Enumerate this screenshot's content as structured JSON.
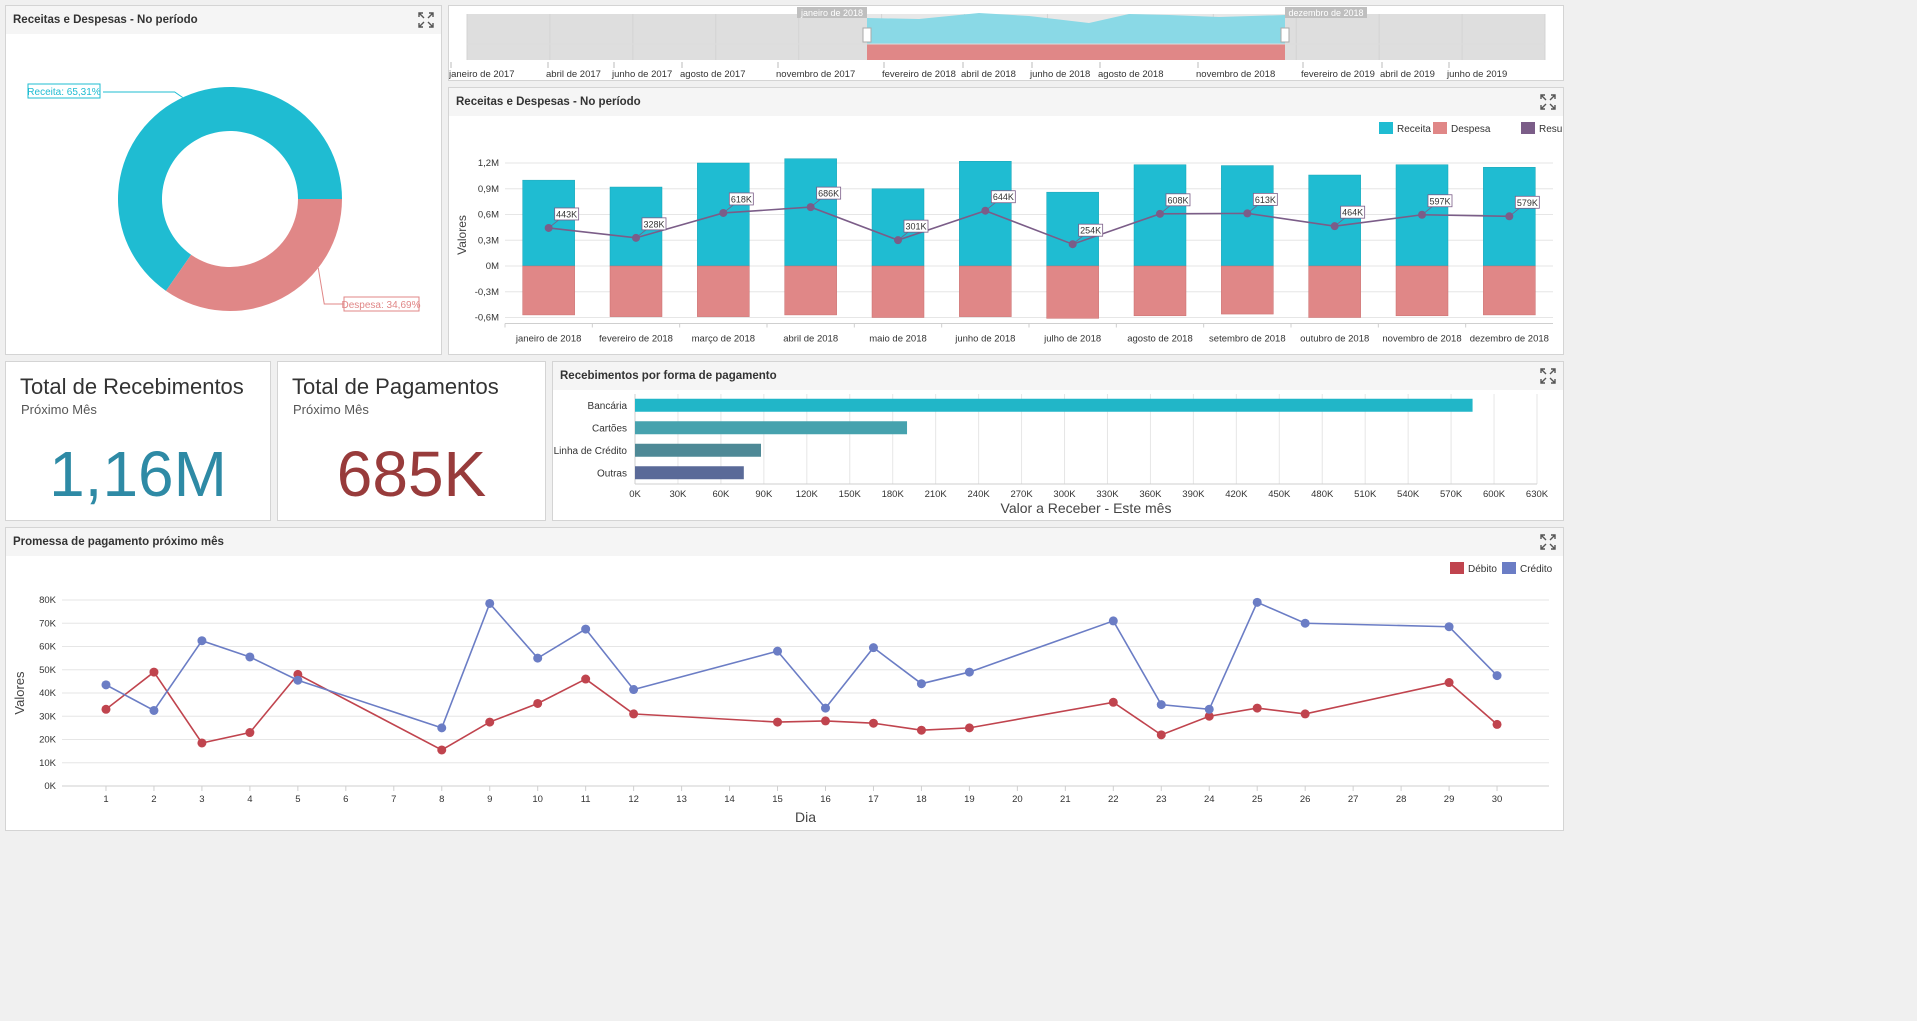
{
  "colors": {
    "receita": "#1fbcd2",
    "despesa": "#e08787",
    "resultado": "#7b5d88",
    "debito": "#c0444e",
    "credito": "#6b7dc5",
    "kpi_recebimentos": "#2e8aa5",
    "kpi_pagamentos": "#983b3b",
    "bar_bancaria": "#21b6c8",
    "bar_cartoes": "#46a2ae",
    "bar_linha": "#4e8996",
    "bar_outras": "#5a6a98"
  },
  "icons": {
    "maximize": "maximize-icon"
  },
  "donut": {
    "title": "Receitas e Despesas - No período",
    "chart_data": {
      "type": "pie",
      "slices": [
        {
          "name": "Receita",
          "value": 65.31,
          "label": "Receita: 65,31%"
        },
        {
          "name": "Despesa",
          "value": 34.69,
          "label": "Despesa: 34,69%"
        }
      ]
    }
  },
  "range": {
    "sel_start_label": "janeiro de 2018",
    "sel_end_label": "dezembro de 2018",
    "ticks": [
      "janeiro de 2017",
      "abril de 2017",
      "junho de 2017",
      "agosto de 2017",
      "novembro de 2017",
      "fevereiro de 2018",
      "abril de 2018",
      "junho de 2018",
      "agosto de 2018",
      "novembro de 2018",
      "fevereiro de 2019",
      "abril de 2019",
      "junho de 2019"
    ]
  },
  "monthly": {
    "title": "Receitas e Despesas - No período",
    "legend": [
      "Receita",
      "Despesa",
      "Resultado"
    ],
    "chart_data": {
      "type": "bar",
      "categories": [
        "janeiro de 2018",
        "fevereiro de 2018",
        "março de 2018",
        "abril de 2018",
        "maio de 2018",
        "junho de 2018",
        "julho de 2018",
        "agosto de 2018",
        "setembro de 2018",
        "outubro de 2018",
        "novembro de 2018",
        "dezembro de 2018"
      ],
      "series": [
        {
          "name": "Receita",
          "type": "bar",
          "values": [
            1.0,
            0.92,
            1.2,
            1.25,
            0.9,
            1.22,
            0.86,
            1.18,
            1.17,
            1.06,
            1.18,
            1.15
          ]
        },
        {
          "name": "Despesa",
          "type": "bar",
          "values": [
            -0.57,
            -0.59,
            -0.59,
            -0.57,
            -0.6,
            -0.59,
            -0.61,
            -0.58,
            -0.56,
            -0.6,
            -0.58,
            -0.57
          ]
        },
        {
          "name": "Resultado",
          "type": "line",
          "values": [
            0.443,
            0.328,
            0.618,
            0.686,
            0.301,
            0.644,
            0.254,
            0.608,
            0.613,
            0.464,
            0.597,
            0.579
          ],
          "labels": [
            "443K",
            "328K",
            "618K",
            "686K",
            "301K",
            "644K",
            "254K",
            "608K",
            "613K",
            "464K",
            "597K",
            "579K"
          ]
        }
      ],
      "ylabel": "Valores",
      "yticks": [
        "1,2M",
        "0,9M",
        "0,6M",
        "0,3M",
        "0M",
        "-0,3M",
        "-0,6M"
      ],
      "ytick_values": [
        1.2,
        0.9,
        0.6,
        0.3,
        0,
        -0.3,
        -0.6
      ],
      "ylim": [
        -0.6,
        1.2
      ]
    }
  },
  "kpi": {
    "recebimentos": {
      "title": "Total de Recebimentos",
      "subtitle": "Próximo Mês",
      "value": "1,16M"
    },
    "pagamentos": {
      "title": "Total de Pagamentos",
      "subtitle": "Próximo Mês",
      "value": "685K"
    }
  },
  "payments": {
    "title": "Recebimentos por forma de pagamento",
    "chart_data": {
      "type": "bar",
      "orientation": "horizontal",
      "categories": [
        "Bancária",
        "Cartões",
        "Linha de Crédito",
        "Outras"
      ],
      "values": [
        585000,
        190000,
        88000,
        76000
      ],
      "xlabel": "Valor a Receber - Este mês",
      "xticks": [
        "0K",
        "30K",
        "60K",
        "90K",
        "120K",
        "150K",
        "180K",
        "210K",
        "240K",
        "270K",
        "300K",
        "330K",
        "360K",
        "390K",
        "420K",
        "450K",
        "480K",
        "510K",
        "540K",
        "570K",
        "600K",
        "630K"
      ],
      "xlim": [
        0,
        630000
      ]
    }
  },
  "promise": {
    "title": "Promessa de pagamento próximo mês",
    "legend": [
      "Débito",
      "Crédito"
    ],
    "chart_data": {
      "type": "line",
      "xlabel": "Dia",
      "ylabel": "Valores",
      "xticks": [
        "1",
        "2",
        "3",
        "4",
        "5",
        "6",
        "7",
        "8",
        "9",
        "10",
        "11",
        "12",
        "13",
        "14",
        "15",
        "16",
        "17",
        "18",
        "19",
        "20",
        "21",
        "22",
        "23",
        "24",
        "25",
        "26",
        "27",
        "28",
        "29",
        "30"
      ],
      "yticks": [
        "80K",
        "70K",
        "60K",
        "50K",
        "40K",
        "30K",
        "20K",
        "10K",
        "0K"
      ],
      "ytick_values": [
        80,
        70,
        60,
        50,
        40,
        30,
        20,
        10,
        0
      ],
      "ylim": [
        0,
        80
      ],
      "series": [
        {
          "name": "Débito",
          "x": [
            1,
            2,
            3,
            4,
            5,
            8,
            9,
            10,
            11,
            12,
            15,
            16,
            17,
            18,
            19,
            22,
            23,
            24,
            25,
            26,
            29,
            30
          ],
          "y": [
            33,
            49,
            18.5,
            23,
            48,
            15.5,
            27.5,
            35.5,
            46,
            31,
            27.5,
            28,
            27,
            24,
            25,
            36,
            22,
            30,
            33.5,
            31,
            44.5,
            26.5
          ]
        },
        {
          "name": "Crédito",
          "x": [
            1,
            2,
            3,
            4,
            5,
            8,
            9,
            10,
            11,
            12,
            15,
            16,
            17,
            18,
            19,
            22,
            23,
            24,
            25,
            26,
            29,
            30
          ],
          "y": [
            43.5,
            32.5,
            62.5,
            55.5,
            45.5,
            25,
            78.5,
            55,
            67.5,
            41.5,
            58,
            33.5,
            59.5,
            44,
            49,
            71,
            35,
            33,
            79,
            70,
            68.5,
            47.5
          ]
        }
      ]
    }
  }
}
